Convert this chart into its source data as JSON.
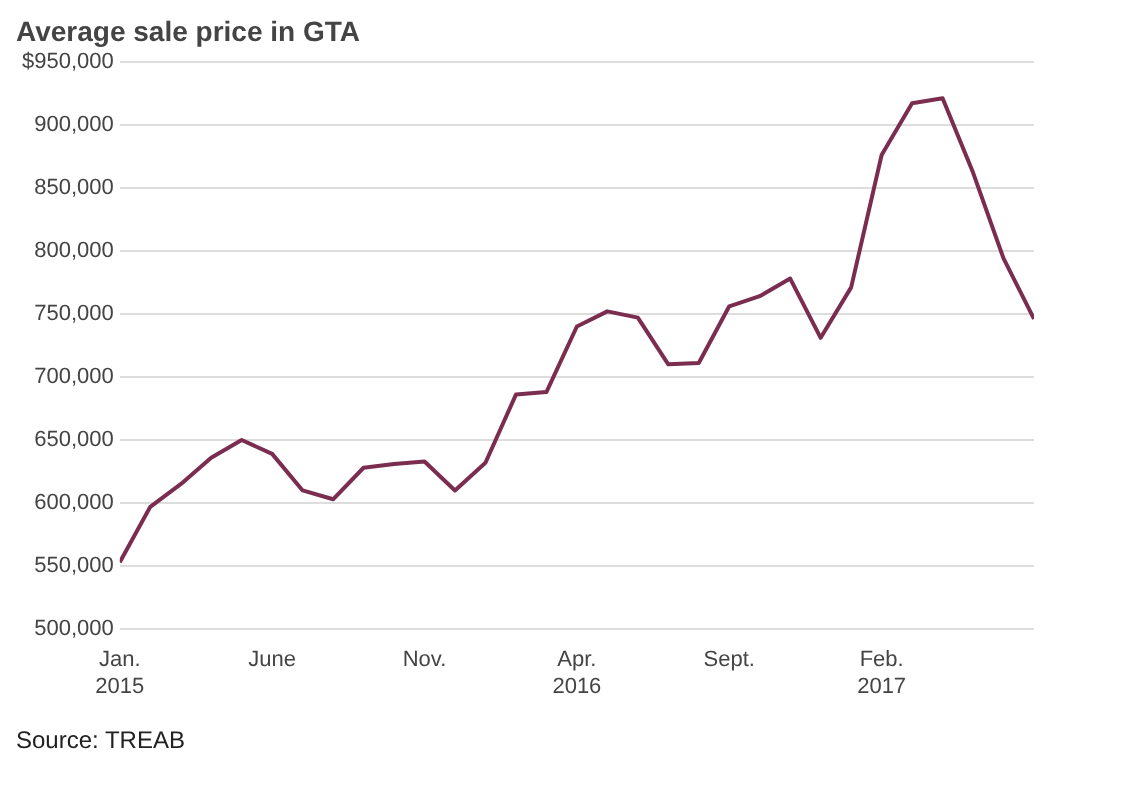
{
  "chart_data": {
    "type": "line",
    "title": "Average sale price in GTA",
    "annotations": [
      "Source: TREAB"
    ],
    "x": [
      "2015-01",
      "2015-02",
      "2015-03",
      "2015-04",
      "2015-05",
      "2015-06",
      "2015-07",
      "2015-08",
      "2015-09",
      "2015-10",
      "2015-11",
      "2015-12",
      "2016-01",
      "2016-02",
      "2016-03",
      "2016-04",
      "2016-05",
      "2016-06",
      "2016-07",
      "2016-08",
      "2016-09",
      "2016-10",
      "2016-11",
      "2016-12",
      "2017-01",
      "2017-02",
      "2017-03",
      "2017-04",
      "2017-05",
      "2017-06",
      "2017-07"
    ],
    "series": [
      {
        "color": "#7b2d50",
        "values": [
          553000,
          597000,
          615000,
          636000,
          650000,
          639000,
          610000,
          603000,
          628000,
          631000,
          633000,
          610000,
          632000,
          686000,
          688000,
          740000,
          752000,
          747000,
          710000,
          711000,
          756000,
          764000,
          778000,
          731000,
          771000,
          876000,
          917000,
          921000,
          862000,
          794000,
          746000
        ]
      }
    ],
    "xlim": [
      "2015-01",
      "2017-07"
    ],
    "xticks": [
      {
        "value": "2015-01",
        "label": "Jan.\n2015"
      },
      {
        "value": "2015-06",
        "label": "June"
      },
      {
        "value": "2015-11",
        "label": "Nov."
      },
      {
        "value": "2016-04",
        "label": "Apr.\n2016"
      },
      {
        "value": "2016-09",
        "label": "Sept."
      },
      {
        "value": "2017-02",
        "label": "Feb.\n2017"
      }
    ],
    "ylim": [
      500000,
      950000
    ],
    "yticks": [
      {
        "value": 500000,
        "label": "500,000"
      },
      {
        "value": 550000,
        "label": "550,000"
      },
      {
        "value": 600000,
        "label": "600,000"
      },
      {
        "value": 650000,
        "label": "650,000"
      },
      {
        "value": 700000,
        "label": "700,000"
      },
      {
        "value": 750000,
        "label": "750,000"
      },
      {
        "value": 800000,
        "label": "800,000"
      },
      {
        "value": 850000,
        "label": "850,000"
      },
      {
        "value": 900000,
        "label": "900,000"
      },
      {
        "value": 950000,
        "label": "$950,000"
      }
    ],
    "grid": "y",
    "legend": false,
    "marker": "none",
    "line_style": "solid"
  }
}
